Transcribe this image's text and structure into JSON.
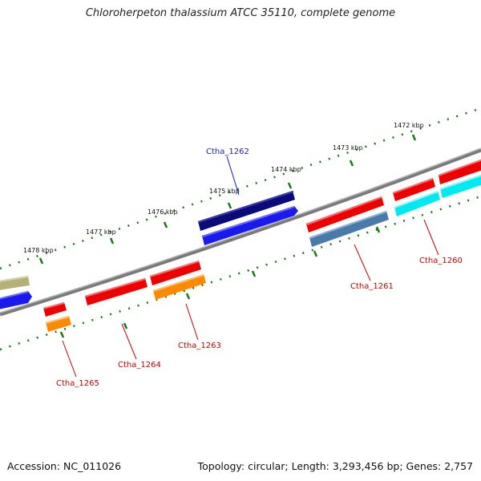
{
  "title": "Chloroherpeton thalassium ATCC 35110, complete genome",
  "accession_label": "Accession: NC_011026",
  "topology_label": "Topology: circular; Length: 3,293,456 bp; Genes: 2,757",
  "colors": {
    "backbone": "#808080",
    "tick": "#1a7a1a",
    "gene_label": "#cc0000",
    "highlight_label": "#1a1acc"
  },
  "scale_labels": [
    "1472 kbp",
    "1473 kbp",
    "1474 kbp",
    "1475 kbp",
    "1476 kbp",
    "1477 kbp",
    "1478 kbp"
  ],
  "gene_labels": [
    "Ctha_1262",
    "Ctha_1260",
    "Ctha_1261",
    "Ctha_1263",
    "Ctha_1264",
    "Ctha_1265"
  ]
}
